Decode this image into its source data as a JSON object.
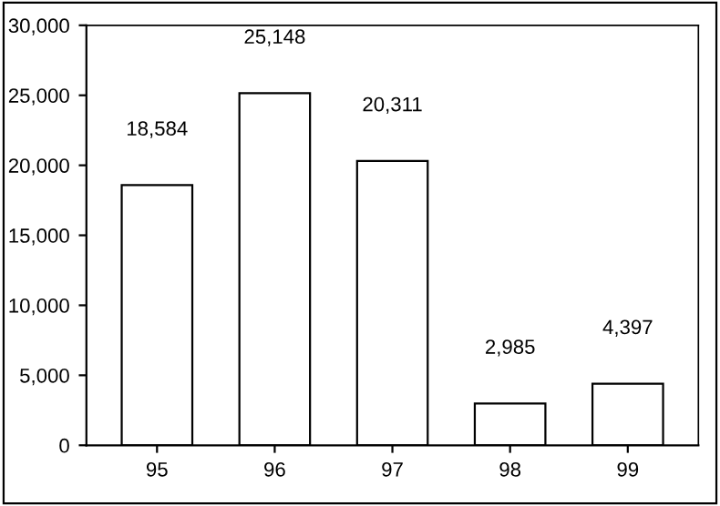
{
  "chart_data": {
    "type": "bar",
    "categories": [
      "95",
      "96",
      "97",
      "98",
      "99"
    ],
    "values": [
      18584,
      25148,
      20311,
      2985,
      4397
    ],
    "value_labels": [
      "18,584",
      "25,148",
      "20,311",
      "2,985",
      "4,397"
    ],
    "color": "#ffffff",
    "ylim": [
      0,
      30000
    ],
    "yticks": [
      {
        "value": 0,
        "label": "0"
      },
      {
        "value": 5000,
        "label": "5,000"
      },
      {
        "value": 10000,
        "label": "10,000"
      },
      {
        "value": 15000,
        "label": "15,000"
      },
      {
        "value": 20000,
        "label": "20,000"
      },
      {
        "value": 25000,
        "label": "25,000"
      },
      {
        "value": 30000,
        "label": "30,000"
      }
    ],
    "grid": false
  }
}
